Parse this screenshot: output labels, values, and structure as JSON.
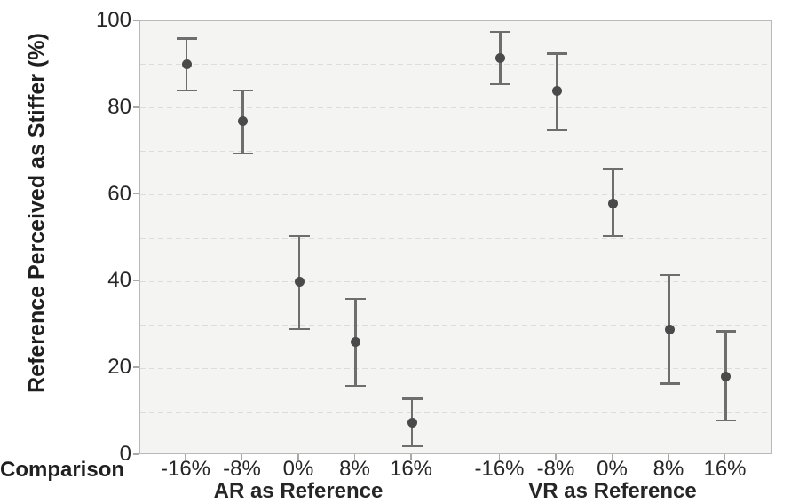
{
  "chart_data": {
    "type": "scatter",
    "subtype": "point-estimates-with-error-bars",
    "title": "",
    "ylabel": "Reference Perceived as Stiffer (%)",
    "xlabel": "Comparison",
    "ylim": [
      0,
      100
    ],
    "ytick_labels": [
      "0",
      "20",
      "40",
      "60",
      "80",
      "100"
    ],
    "ytick_values": [
      0,
      20,
      40,
      60,
      80,
      100
    ],
    "gridline_values": [
      10,
      20,
      30,
      40,
      50,
      60,
      70,
      80,
      90
    ],
    "grid": "horizontal-dashed",
    "legend": "none",
    "groups": [
      {
        "label": "AR as Reference",
        "categories": [
          "-16%",
          "-8%",
          "0%",
          "8%",
          "16%"
        ],
        "points": [
          {
            "category": "-16%",
            "mean": 90,
            "ci_low": 84,
            "ci_high": 96
          },
          {
            "category": "-8%",
            "mean": 77,
            "ci_low": 69.5,
            "ci_high": 84
          },
          {
            "category": "0%",
            "mean": 40,
            "ci_low": 29,
            "ci_high": 50.5
          },
          {
            "category": "8%",
            "mean": 26,
            "ci_low": 16,
            "ci_high": 36
          },
          {
            "category": "16%",
            "mean": 7.5,
            "ci_low": 2,
            "ci_high": 13
          }
        ]
      },
      {
        "label": "VR as Reference",
        "categories": [
          "-16%",
          "-8%",
          "0%",
          "8%",
          "16%"
        ],
        "points": [
          {
            "category": "-16%",
            "mean": 91.5,
            "ci_low": 85.5,
            "ci_high": 97.5
          },
          {
            "category": "-8%",
            "mean": 84,
            "ci_low": 75,
            "ci_high": 92.5
          },
          {
            "category": "0%",
            "mean": 58,
            "ci_low": 50.5,
            "ci_high": 66
          },
          {
            "category": "8%",
            "mean": 29,
            "ci_low": 16.5,
            "ci_high": 41.5
          },
          {
            "category": "16%",
            "mean": 18,
            "ci_low": 8,
            "ci_high": 28.5
          }
        ]
      }
    ],
    "colors": {
      "point": "#4a4a4a",
      "error_bar": "#6e6e6e",
      "plot_background": "#f4f4f2",
      "plot_border": "#b9b9b7",
      "gridline": "#dcdcda",
      "text": "#262626",
      "page_background": "#ffffff"
    }
  }
}
